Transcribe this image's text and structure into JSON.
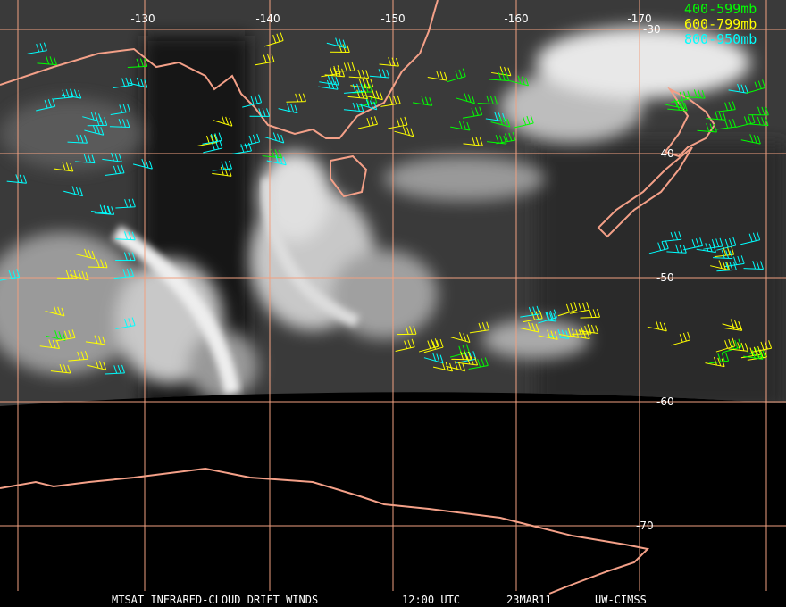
{
  "map": {
    "longitude_labels": [
      "-130",
      "-140",
      "-150",
      "-160",
      "-170"
    ],
    "latitude_labels": [
      "-30",
      "-40",
      "-50",
      "-60",
      "-70"
    ]
  },
  "legend": [
    "400-599mb",
    "600-799mb",
    "800-950mb"
  ],
  "footer": {
    "title": "MTSAT INFRARED-CLOUD DRIFT WINDS",
    "time": "12:00 UTC",
    "date": "23MAR11",
    "source": "UW-CIMSS"
  }
}
